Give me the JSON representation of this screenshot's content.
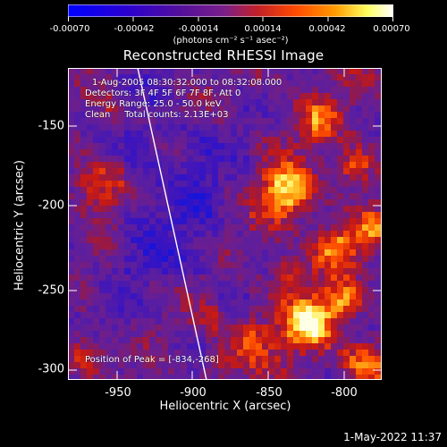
{
  "colorbar": {
    "tick_labels": [
      "-0.00070",
      "-0.00042",
      "-0.00014",
      "0.00014",
      "0.00042",
      "0.00070"
    ],
    "unit_label": "(photons cm⁻² s⁻¹ asec⁻²)",
    "colors": [
      "#0000ff",
      "#2a00c8",
      "#55109a",
      "#7a1f8a",
      "#c0202a",
      "#ff5a00",
      "#ffa000",
      "#ffff60",
      "#ffffff"
    ]
  },
  "title": "Reconstructed RHESSI Image",
  "annotations": {
    "time_range": "1-Aug-2005 08:30:32.000 to 08:32:08.000",
    "detectors": "Detectors: 3F 4F 5F 6F 7F 8F, Att 0",
    "energy": "Energy Range: 25.0 - 50.0 keV",
    "method": "Clean     Total counts: 2.13E+03",
    "peak": "Position of Peak = [-834,-268]"
  },
  "axes": {
    "xlabel": "Heliocentric X (arcsec)",
    "ylabel": "Heliocentric Y (arcsec)",
    "x_ticks": [
      "-950",
      "-900",
      "-850",
      "-800"
    ],
    "y_ticks": [
      "-150",
      "-200",
      "-250",
      "-300"
    ]
  },
  "timestamp": "1-May-2022 11:37"
}
